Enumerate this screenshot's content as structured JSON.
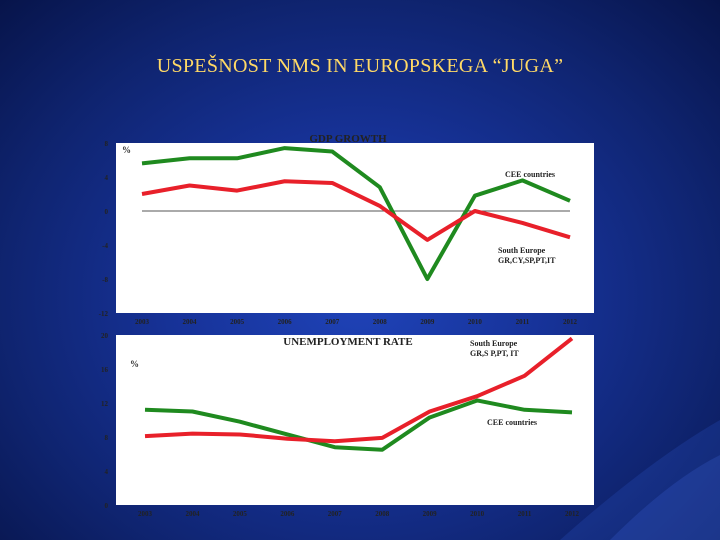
{
  "slide": {
    "title": "USPEŠNOST NMS IN EUROPSKEGA “JUGA”"
  },
  "colors": {
    "cee": "#1f8a1f",
    "south": "#e8202a",
    "panel": "#ffffff",
    "axis_text": "#333333"
  },
  "chart_data": [
    {
      "type": "line",
      "title": "GDP GROWTH",
      "ylabel": "%",
      "categories": [
        "2003",
        "2004",
        "2005",
        "2006",
        "2007",
        "2008",
        "2009",
        "2010",
        "2011",
        "2012"
      ],
      "yticks": [
        "8",
        "4",
        "0",
        "-4",
        "-8",
        "-12"
      ],
      "ylim": [
        -12,
        8
      ],
      "zero_line": true,
      "series": [
        {
          "name": "CEE countries",
          "values": [
            5.6,
            6.2,
            6.2,
            7.4,
            7.0,
            2.8,
            -8.0,
            1.8,
            3.6,
            1.2
          ]
        },
        {
          "name": "South Europe GR,CY,SP,PT,IT",
          "name_lines": [
            "South Europe",
            "GR,CY,SP,PT,IT"
          ],
          "values": [
            2.0,
            3.0,
            2.4,
            3.5,
            3.3,
            0.6,
            -3.4,
            0.0,
            -1.4,
            -3.1
          ]
        }
      ]
    },
    {
      "type": "line",
      "title": "UNEMPLOYMENT RATE",
      "ylabel": "%",
      "categories": [
        "2003",
        "2004",
        "2005",
        "2006",
        "2007",
        "2008",
        "2009",
        "2010",
        "2011",
        "2012"
      ],
      "yticks": [
        "20",
        "16",
        "12",
        "8",
        "4",
        "0"
      ],
      "ylim": [
        0,
        20
      ],
      "series": [
        {
          "name": "CEE countries",
          "values": [
            11.2,
            11.0,
            9.8,
            8.3,
            6.8,
            6.5,
            10.3,
            12.3,
            11.2,
            10.9
          ]
        },
        {
          "name": "South Europe GR,S P,PT, IT",
          "name_lines": [
            "South Europe",
            "GR,S P,PT, IT"
          ],
          "values": [
            8.1,
            8.4,
            8.3,
            7.8,
            7.5,
            7.9,
            11.0,
            12.8,
            15.2,
            19.6
          ]
        }
      ]
    }
  ]
}
